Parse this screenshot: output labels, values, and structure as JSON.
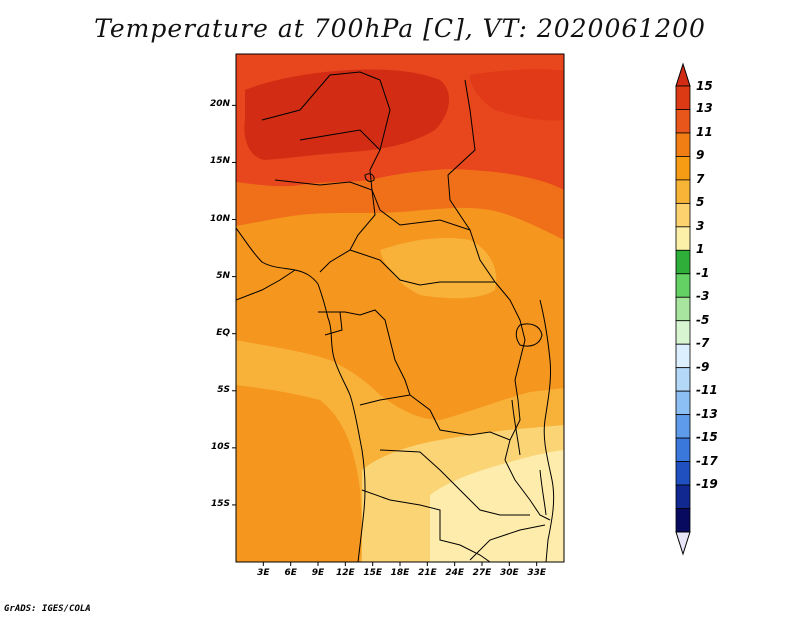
{
  "title": "Temperature at 700hPa [C], VT: 2020061200",
  "credit": "GrADS: IGES/COLA",
  "map": {
    "lon_range": [
      0,
      36
    ],
    "lat_range": [
      -20,
      24.5
    ],
    "lat_ticks": [
      {
        "label": "20N",
        "value": 20
      },
      {
        "label": "15N",
        "value": 15
      },
      {
        "label": "10N",
        "value": 10
      },
      {
        "label": "5N",
        "value": 5
      },
      {
        "label": "EQ",
        "value": 0
      },
      {
        "label": "5S",
        "value": -5
      },
      {
        "label": "10S",
        "value": -10
      },
      {
        "label": "15S",
        "value": -15
      }
    ],
    "lon_ticks": [
      {
        "label": "3E",
        "value": 3
      },
      {
        "label": "6E",
        "value": 6
      },
      {
        "label": "9E",
        "value": 9
      },
      {
        "label": "12E",
        "value": 12
      },
      {
        "label": "15E",
        "value": 15
      },
      {
        "label": "18E",
        "value": 18
      },
      {
        "label": "21E",
        "value": 21
      },
      {
        "label": "24E",
        "value": 24
      },
      {
        "label": "27E",
        "value": 27
      },
      {
        "label": "30E",
        "value": 30
      },
      {
        "label": "33E",
        "value": 33
      }
    ]
  },
  "colorbar": {
    "levels": [
      "15",
      "13",
      "11",
      "9",
      "7",
      "5",
      "3",
      "1",
      "-1",
      "-3",
      "-5",
      "-7",
      "-9",
      "-11",
      "-13",
      "-15",
      "-17",
      "-19"
    ],
    "top_color": "#d22d14",
    "bottom_color": "#e8e4f8",
    "colors": [
      "#dc3a14",
      "#e8561c",
      "#f07e14",
      "#f59c14",
      "#f7b437",
      "#fbd26e",
      "#fcf0a8",
      "#2fae3a",
      "#63d163",
      "#a8e6a0",
      "#d8f5d2",
      "#dcefff",
      "#b4d8f8",
      "#8cc0f4",
      "#5e9ceb",
      "#3a78dc",
      "#2050c0",
      "#102890",
      "#080a60"
    ]
  },
  "fill_colors": {
    "t15": "#d22d14",
    "t13": "#e8461c",
    "t11": "#f0701a",
    "t9": "#f5961e",
    "t7": "#f8b23a",
    "t5": "#fbd476",
    "t3": "#fdecab"
  }
}
